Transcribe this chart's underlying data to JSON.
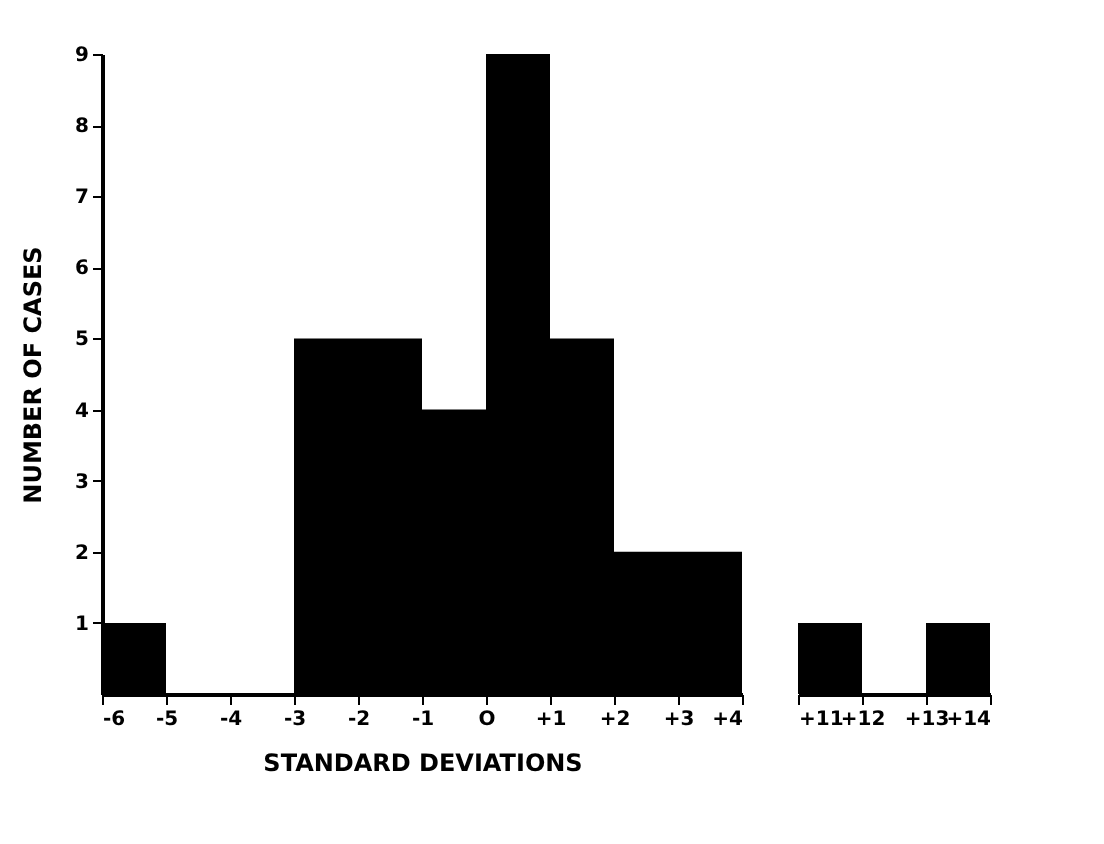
{
  "chart_data": [
    {
      "type": "histogram",
      "xlabel": "STANDARD DEVIATIONS",
      "ylabel": "NUMBER OF CASES",
      "bins": [
        -6,
        -5,
        -4,
        -3,
        -2,
        -1,
        0,
        1,
        2,
        3,
        4
      ],
      "values": [
        1,
        0,
        0,
        5,
        5,
        4,
        9,
        5,
        2,
        2
      ],
      "color": "#000000",
      "xlim": [
        -6,
        4
      ],
      "xticks": [
        {
          "value": -6,
          "label": "-6"
        },
        {
          "value": -5,
          "label": "-5"
        },
        {
          "value": -4,
          "label": "-4"
        },
        {
          "value": -3,
          "label": "-3"
        },
        {
          "value": -2,
          "label": "-2"
        },
        {
          "value": -1,
          "label": "-1"
        },
        {
          "value": 0,
          "label": "O"
        },
        {
          "value": 1,
          "label": "+1"
        },
        {
          "value": 2,
          "label": "+2"
        },
        {
          "value": 3,
          "label": "+3"
        },
        {
          "value": 4,
          "label": "+4"
        }
      ],
      "ylim": [
        0,
        9
      ],
      "yticks": [
        1,
        2,
        3,
        4,
        5,
        6,
        7,
        8,
        9
      ]
    },
    {
      "type": "histogram",
      "bins": [
        11,
        12,
        13,
        14
      ],
      "values": [
        1,
        0,
        1
      ],
      "color": "#000000",
      "xlim": [
        11,
        14
      ],
      "xticks": [
        {
          "value": 11,
          "label": "+11"
        },
        {
          "value": 12,
          "label": "+12"
        },
        {
          "value": 13,
          "label": "+13"
        },
        {
          "value": 14,
          "label": "+14"
        }
      ],
      "ylim": [
        0,
        9
      ],
      "tick_labels": "x"
    }
  ]
}
